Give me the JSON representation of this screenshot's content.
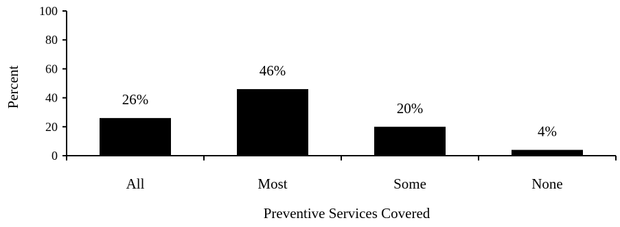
{
  "chart_data": {
    "type": "bar",
    "categories": [
      "All",
      "Most",
      "Some",
      "None"
    ],
    "values": [
      26,
      46,
      20,
      4
    ],
    "data_labels": [
      "26%",
      "46%",
      "20%",
      "4%"
    ],
    "title": "",
    "xlabel": "Preventive Services Covered",
    "ylabel": "Percent",
    "ylim": [
      0,
      100
    ],
    "yticks": [
      0,
      20,
      40,
      60,
      80,
      100
    ],
    "ytick_labels": [
      "0",
      "20",
      "40",
      "60",
      "80",
      "100"
    ],
    "grid": false,
    "legend": "none",
    "bar_color": "#000000"
  }
}
